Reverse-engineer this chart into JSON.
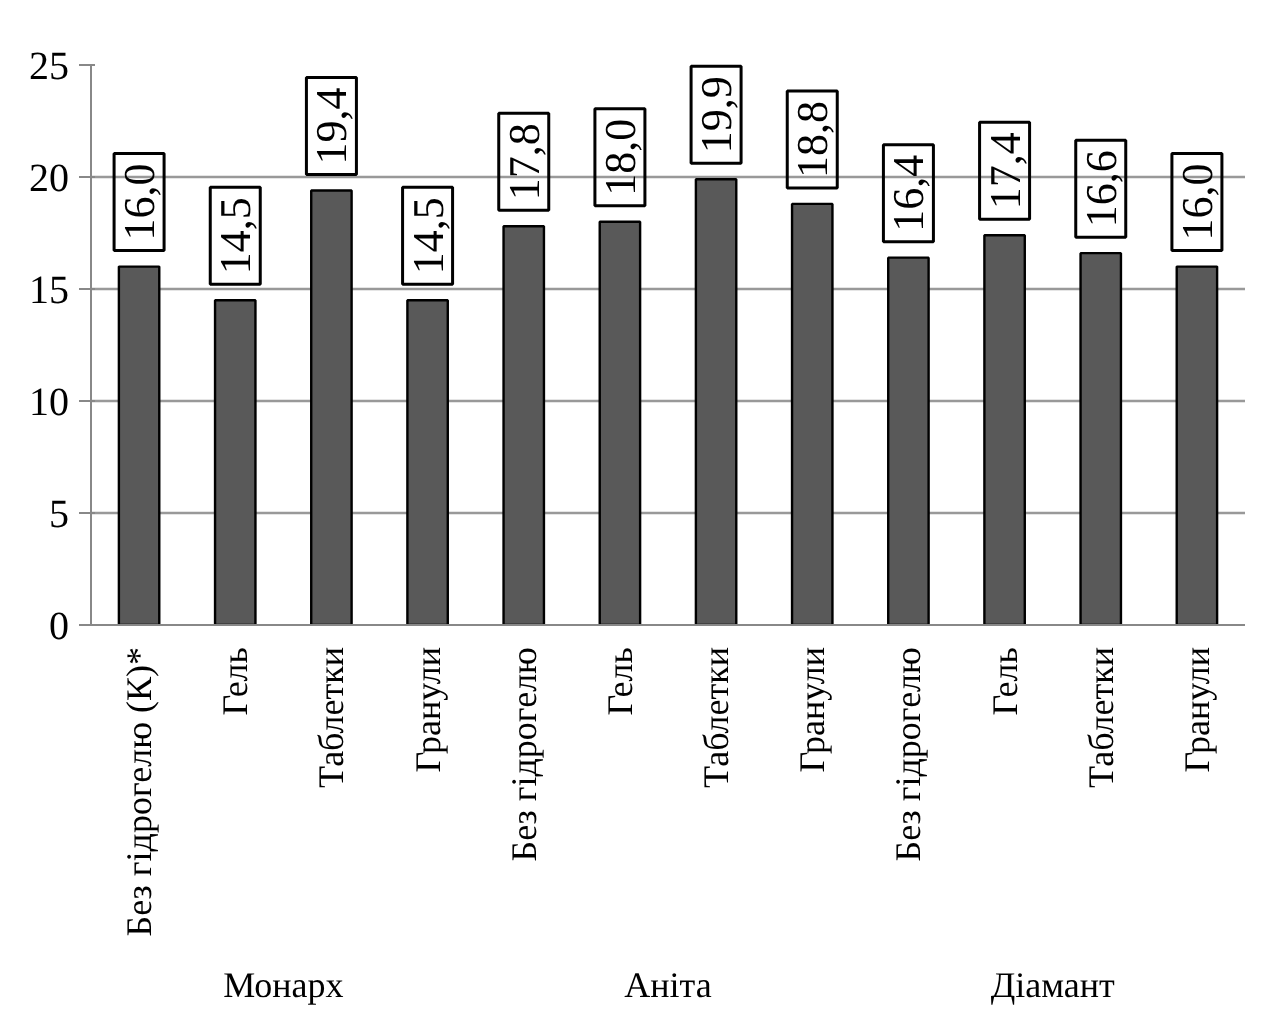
{
  "chart_data": {
    "type": "bar",
    "categories": [
      "Без гідрогелю (К)*",
      "Гель",
      "Таблетки",
      "Гранули",
      "Без гідрогелю",
      "Гель",
      "Таблетки",
      "Гранули",
      "Без гідрогелю",
      "Гель",
      "Таблетки",
      "Гранули"
    ],
    "values": [
      16.0,
      14.5,
      19.4,
      14.5,
      17.8,
      18.0,
      19.9,
      18.8,
      16.4,
      17.4,
      16.6,
      16.0
    ],
    "value_labels": [
      "16,0",
      "14,5",
      "19,4",
      "14,5",
      "17,8",
      "18,0",
      "19,9",
      "18,8",
      "16,4",
      "17,4",
      "16,6",
      "16,0"
    ],
    "color": "#595959",
    "annotations": [
      "Монарх",
      "Аніта",
      "Діамант"
    ],
    "ylim": [
      0,
      25
    ],
    "yticks": [
      0,
      5,
      10,
      15,
      20,
      25
    ],
    "grid": "y"
  }
}
